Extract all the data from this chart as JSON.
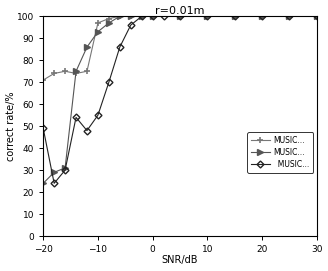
{
  "title": "r=0.01m",
  "xlabel": "SNR/dB",
  "ylabel": "correct rate/%",
  "xlim": [
    -20,
    30
  ],
  "ylim": [
    0,
    100
  ],
  "xticks": [
    -20,
    -10,
    0,
    10,
    20,
    30
  ],
  "yticks": [
    0,
    10,
    20,
    30,
    40,
    50,
    60,
    70,
    80,
    90,
    100
  ],
  "series": [
    {
      "label": "MUSIC...",
      "x": [
        -20,
        -18,
        -16,
        -14,
        -12,
        -10,
        -8,
        -6,
        -4,
        -2,
        0,
        5,
        10,
        15,
        20,
        25,
        30
      ],
      "y": [
        71,
        74,
        75,
        74,
        75,
        97,
        99,
        100,
        100,
        100,
        100,
        100,
        100,
        100,
        100,
        100,
        100
      ],
      "color": "#777777",
      "marker": "+",
      "markersize": 5,
      "markeredgewidth": 1.2,
      "linewidth": 0.8,
      "linestyle": "-"
    },
    {
      "label": "MUSIC...",
      "x": [
        -20,
        -18,
        -16,
        -14,
        -12,
        -10,
        -8,
        -6,
        -4,
        -2,
        0,
        5,
        10,
        15,
        20,
        25,
        30
      ],
      "y": [
        24,
        29,
        31,
        75,
        86,
        93,
        97,
        100,
        100,
        100,
        100,
        100,
        100,
        100,
        100,
        100,
        100
      ],
      "color": "#555555",
      "marker": ">",
      "markersize": 4,
      "markeredgewidth": 1.0,
      "linewidth": 0.8,
      "linestyle": "-"
    },
    {
      "label": "  MUSIC...",
      "x": [
        -20,
        -18,
        -16,
        -14,
        -12,
        -10,
        -8,
        -6,
        -4,
        -2,
        0,
        2,
        5,
        10,
        15,
        20,
        25,
        30
      ],
      "y": [
        49,
        24,
        30,
        54,
        48,
        55,
        70,
        86,
        96,
        100,
        100,
        100,
        100,
        100,
        100,
        100,
        100,
        100
      ],
      "color": "#222222",
      "marker": "D",
      "markersize": 3.5,
      "markeredgewidth": 1.0,
      "linewidth": 0.8,
      "linestyle": "-"
    }
  ],
  "legend_entries": [
    "MUSIC...",
    "MUSIC...",
    "  MUSIC..."
  ],
  "legend_markers": [
    "+",
    ">",
    "D"
  ],
  "legend_colors": [
    "#777777",
    "#555555",
    "#222222"
  ],
  "background_color": "#ffffff",
  "title_fontsize": 8,
  "label_fontsize": 7,
  "tick_fontsize": 6.5
}
